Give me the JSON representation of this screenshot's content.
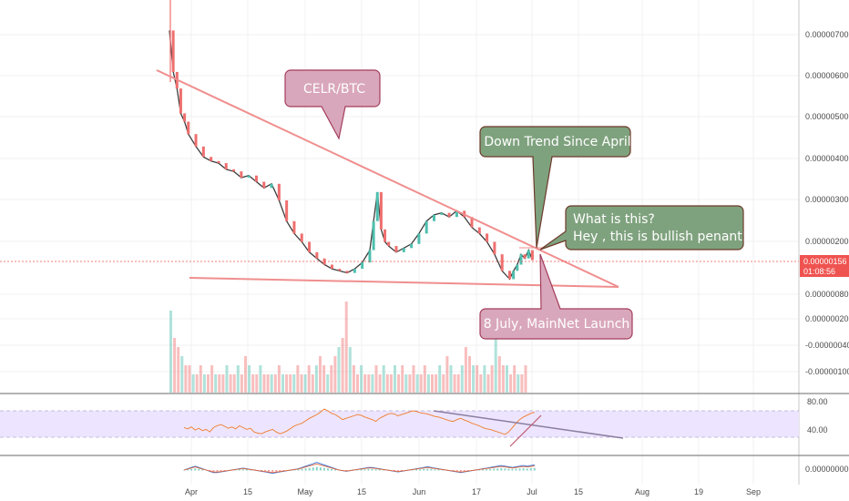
{
  "chart_data": {
    "type": "line",
    "title": "CELR/BTC",
    "price_axis": {
      "ticks": [
        "0.00000700",
        "0.00000600",
        "0.00000500",
        "0.00000400",
        "0.00000300",
        "0.00000200",
        "0.00000080",
        "0.00000020",
        "-0.00000040",
        "-0.00000100"
      ],
      "last_price": "0.00000156",
      "countdown": "01:08:56"
    },
    "rsi_axis": {
      "ticks": [
        "80.00",
        "40.00"
      ]
    },
    "macd_axis": {
      "ticks": [
        "0.00000000"
      ]
    },
    "x_axis": {
      "ticks": [
        "Apr",
        "15",
        "May",
        "15",
        "Jun",
        "17",
        "Jul",
        "15",
        "Aug",
        "19",
        "Sep"
      ]
    },
    "price_series": {
      "name": "CELR/BTC",
      "points": [
        [
          0,
          7.1e-06
        ],
        [
          1,
          6.1e-06
        ],
        [
          2,
          5.7e-06
        ],
        [
          3,
          5.1e-06
        ],
        [
          4,
          4.9e-06
        ],
        [
          5,
          4.6e-06
        ],
        [
          7,
          4.3e-06
        ],
        [
          9,
          4.05e-06
        ],
        [
          11,
          3.95e-06
        ],
        [
          13,
          3.9e-06
        ],
        [
          15,
          3.75e-06
        ],
        [
          17,
          3.7e-06
        ],
        [
          19,
          3.55e-06
        ],
        [
          21,
          3.6e-06
        ],
        [
          23,
          3.45e-06
        ],
        [
          25,
          3.3e-06
        ],
        [
          27,
          3.4e-06
        ],
        [
          29,
          3e-06
        ],
        [
          31,
          2.5e-06
        ],
        [
          33,
          2.2e-06
        ],
        [
          35,
          2e-06
        ],
        [
          37,
          1.75e-06
        ],
        [
          39,
          1.6e-06
        ],
        [
          41,
          1.45e-06
        ],
        [
          43,
          1.35e-06
        ],
        [
          45,
          1.3e-06
        ],
        [
          47,
          1.25e-06
        ],
        [
          49,
          1.35e-06
        ],
        [
          51,
          1.5e-06
        ],
        [
          53,
          1.8e-06
        ],
        [
          54,
          2.5e-06
        ],
        [
          55,
          3.2e-06
        ],
        [
          56,
          2.3e-06
        ],
        [
          57,
          2e-06
        ],
        [
          58,
          1.9e-06
        ],
        [
          60,
          1.75e-06
        ],
        [
          62,
          1.85e-06
        ],
        [
          64,
          1.95e-06
        ],
        [
          66,
          2.2e-06
        ],
        [
          68,
          2.5e-06
        ],
        [
          70,
          2.65e-06
        ],
        [
          72,
          2.7e-06
        ],
        [
          74,
          2.6e-06
        ],
        [
          76,
          2.75e-06
        ],
        [
          78,
          2.6e-06
        ],
        [
          80,
          2.35e-06
        ],
        [
          82,
          2.2e-06
        ],
        [
          84,
          2e-06
        ],
        [
          86,
          1.7e-06
        ],
        [
          88,
          1.3e-06
        ],
        [
          90,
          1.1e-06
        ],
        [
          91,
          1.3e-06
        ],
        [
          92,
          1.45e-06
        ],
        [
          93,
          1.7e-06
        ],
        [
          94,
          1.6e-06
        ],
        [
          95,
          1.8e-06
        ],
        [
          96,
          1.56e-06
        ]
      ]
    },
    "volume_series": {
      "name": "Volume",
      "bars": [
        9,
        6,
        5,
        4,
        3,
        3,
        2,
        2,
        3,
        2,
        2,
        3,
        2,
        2,
        2,
        3,
        2,
        2,
        3,
        2,
        4,
        3,
        2,
        2,
        3,
        2,
        2,
        2,
        2,
        3,
        2,
        2,
        2,
        2,
        3,
        2,
        2,
        3,
        2,
        3,
        4,
        3,
        2,
        3,
        4,
        5,
        6,
        10,
        5,
        3,
        2,
        3,
        2,
        2,
        2,
        3,
        2,
        3,
        2,
        2,
        3,
        2,
        3,
        2,
        2,
        3,
        2,
        2,
        3,
        2,
        2,
        2,
        3,
        2,
        4,
        3,
        2,
        2,
        3,
        5,
        4,
        3,
        3,
        2,
        3,
        2,
        3,
        9,
        4,
        3,
        3,
        2,
        3,
        2,
        2,
        3
      ]
    },
    "rsi_series": {
      "name": "RSI",
      "values": [
        45,
        43,
        46,
        41,
        44,
        40,
        42,
        38,
        45,
        48,
        50,
        47,
        44,
        46,
        43,
        48,
        45,
        42,
        44,
        38,
        36,
        35,
        38,
        40,
        42,
        38,
        35,
        37,
        40,
        44,
        48,
        50,
        52,
        56,
        60,
        63,
        66,
        70,
        75,
        72,
        68,
        66,
        62,
        58,
        60,
        62,
        64,
        66,
        65,
        62,
        60,
        58,
        55,
        60,
        63,
        66,
        68,
        67,
        64,
        66,
        68,
        70,
        72,
        71,
        69,
        68,
        67,
        65,
        63,
        62,
        60,
        58,
        56,
        55,
        58,
        60,
        57,
        55,
        52,
        50,
        48,
        45,
        43,
        42,
        40,
        38,
        36,
        34,
        38,
        45,
        52,
        58,
        62,
        65,
        68,
        70
      ]
    },
    "macd_series": {
      "name": "MACD",
      "values": [
        0,
        0.1,
        0.2,
        0.3,
        0.2,
        0.1,
        0,
        -0.1,
        -0.2,
        -0.2,
        -0.15,
        -0.1,
        -0.05,
        0,
        0.05,
        0.1,
        0.15,
        0.1,
        0.05,
        0,
        -0.05,
        -0.1,
        -0.15,
        -0.2,
        -0.25,
        -0.2,
        -0.15,
        -0.1,
        -0.05,
        0,
        0.05,
        0.1,
        0.2,
        0.3,
        0.4,
        0.5,
        0.6,
        0.5,
        0.4,
        0.3,
        0.2,
        0.1,
        0,
        -0.05,
        -0.1,
        -0.05,
        0,
        0.05,
        0.1,
        0.15,
        0.2,
        0.2,
        0.15,
        0.1,
        0.05,
        0,
        -0.05,
        -0.1,
        -0.15,
        -0.1,
        -0.05,
        0,
        0.05,
        0.1,
        0.15,
        0.2,
        0.25,
        0.2,
        0.15,
        0.1,
        0.05,
        0,
        -0.05,
        -0.1,
        -0.15,
        -0.2,
        -0.15,
        -0.1,
        -0.05,
        0,
        0.05,
        0.1,
        0.15,
        0.2,
        0.25,
        0.3,
        0.35,
        0.3,
        0.25,
        0.2,
        0.25,
        0.3,
        0.35,
        0.3,
        0.35,
        0.4
      ]
    },
    "trendlines": [
      {
        "name": "down-trend",
        "from": [
          0,
          6.1e-06
        ],
        "to": [
          135,
          8.5e-07
        ]
      },
      {
        "name": "support",
        "from": [
          3,
          1.1e-06
        ],
        "to": [
          135,
          8.5e-07
        ]
      }
    ],
    "annotations": [
      {
        "name": "pair-label",
        "text": "CELR/BTC"
      },
      {
        "name": "down-trend-note",
        "text": "Down Trend Since April"
      },
      {
        "name": "pennant-note",
        "lines": [
          "What is this?",
          "Hey , this is bullish penant!"
        ]
      },
      {
        "name": "mainnet-note",
        "text": "8 July, MainNet Launch"
      }
    ],
    "colors": {
      "up": "#4ebfae",
      "down": "#ef6f6f",
      "trendline": "#f08e8e",
      "rsi_band": "#ede5ff",
      "rsi_line": "#f07c2a",
      "pink_callout": "#d9a7bb",
      "green_callout": "#7fa27e",
      "price_badge": "#ef5350"
    },
    "grid": true,
    "legend": "none"
  }
}
